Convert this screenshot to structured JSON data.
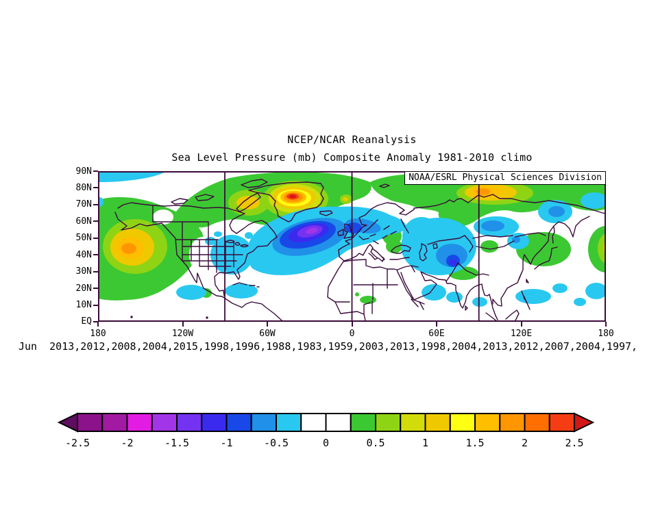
{
  "header": {
    "title": "NCEP/NCAR Reanalysis",
    "subtitle": "Sea Level Pressure (mb) Composite Anomaly 1981-2010 climo"
  },
  "map": {
    "credit": "NOAA/ESRL Physical Sciences Division",
    "lat_ticks": [
      "90N",
      "80N",
      "70N",
      "60N",
      "50N",
      "40N",
      "30N",
      "20N",
      "10N",
      "EQ"
    ],
    "lon_ticks": [
      "180",
      "120W",
      "60W",
      "0",
      "60E",
      "120E",
      "180"
    ]
  },
  "caption": {
    "years_line": "Jun  2013,2012,2008,2004,2015,1998,1996,1988,1983,1959,2003,2013,1998,2004,2013,2012,2007,2004,1997,"
  },
  "colorbar": {
    "tick_labels": [
      "-2.5",
      "-2",
      "-1.5",
      "-1",
      "-0.5",
      "0",
      "0.5",
      "1",
      "1.5",
      "2",
      "2.5"
    ],
    "cell_colors": [
      "#8b128b",
      "#a11aa1",
      "#e31ce3",
      "#a335e8",
      "#7433f0",
      "#3a2af0",
      "#1848e8",
      "#2090e8",
      "#29c8f0",
      "#ffffff",
      "#ffffff",
      "#3cc832",
      "#8fd414",
      "#d2dc0a",
      "#f0c800",
      "#ffff14",
      "#ffbe00",
      "#ff9600",
      "#ff6e00",
      "#f53c14"
    ],
    "left_arrow_color": "#5e0e5e",
    "right_arrow_color": "#d31717"
  },
  "colors": {
    "frame": "#3a0a3a",
    "text": "#000000"
  },
  "chart_data": {
    "type": "heatmap",
    "subtype": "filled-contour geographic composite anomaly map",
    "title": "NCEP/NCAR Reanalysis",
    "subtitle": "Sea Level Pressure (mb) Composite Anomaly 1981-2010 climo",
    "variable": "Sea level pressure anomaly",
    "units": "mb",
    "climatology": "1981-2010",
    "credit": "NOAA/ESRL Physical Sciences Division",
    "composite_month": "Jun",
    "composite_years": [
      2013,
      2012,
      2008,
      2004,
      2015,
      1998,
      1996,
      1988,
      1983,
      1959,
      2003,
      2013,
      1998,
      2004,
      2013,
      2012,
      2007,
      2004,
      1997
    ],
    "extent": {
      "lat": [
        "EQ",
        "90N"
      ],
      "lon": [
        "180W",
        "180E"
      ]
    },
    "x_tick_labels": [
      "180",
      "120W",
      "60W",
      "0",
      "60E",
      "120E",
      "180"
    ],
    "y_tick_labels": [
      "90N",
      "80N",
      "70N",
      "60N",
      "50N",
      "40N",
      "30N",
      "20N",
      "10N",
      "EQ"
    ],
    "grid_meridians": [
      "90W",
      "0",
      "90E"
    ],
    "colorbar_levels": [
      -2.5,
      -2.25,
      -2,
      -1.75,
      -1.5,
      -1.25,
      -1,
      -0.75,
      -0.5,
      -0.25,
      0,
      0.25,
      0.5,
      0.75,
      1,
      1.25,
      1.5,
      1.75,
      2,
      2.25,
      2.5
    ],
    "colorbar_label_step": 0.5,
    "anomaly_centers": [
      {
        "region": "Greenland",
        "value_mb": 2.5,
        "sign": "positive"
      },
      {
        "region": "North Atlantic between Iceland and British Isles",
        "value_mb": -1.75,
        "sign": "negative"
      },
      {
        "region": "Gulf of Alaska / North Pacific",
        "value_mb": 2.0,
        "sign": "positive"
      },
      {
        "region": "Arctic coast of central Siberia",
        "value_mb": 1.75,
        "sign": "positive"
      },
      {
        "region": "Northwest Canada",
        "value_mb": 1.25,
        "sign": "positive"
      },
      {
        "region": "Scandinavia / western Russia",
        "value_mb": -1.0,
        "sign": "negative"
      },
      {
        "region": "Central Asia",
        "value_mb": -1.25,
        "sign": "negative"
      },
      {
        "region": "Eastern United States",
        "value_mb": -0.5,
        "sign": "negative"
      },
      {
        "region": "High-latitude band Canada-Greenland-Siberia",
        "value_mb": 0.5,
        "sign": "positive"
      }
    ]
  }
}
